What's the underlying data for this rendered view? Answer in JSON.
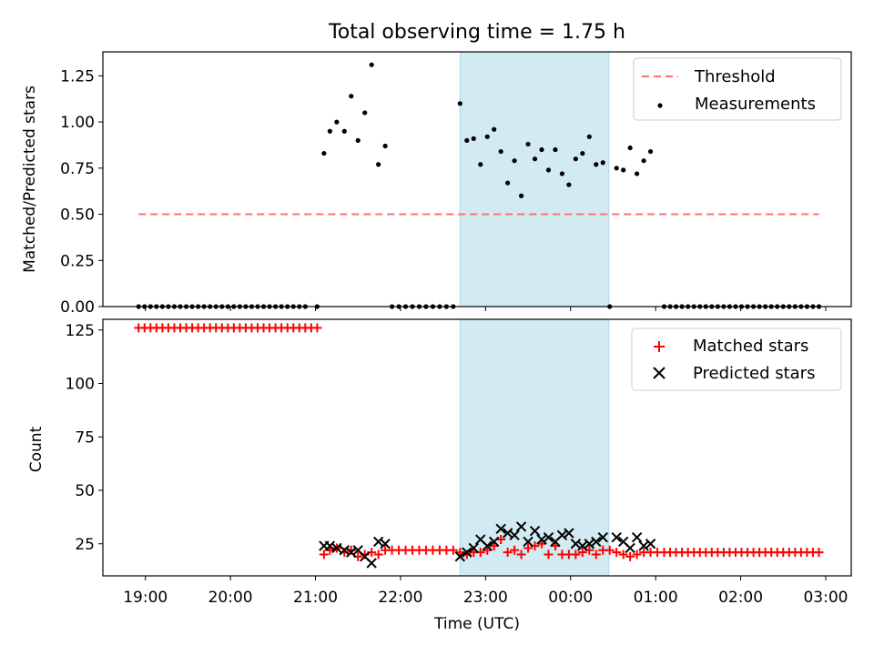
{
  "chart_data": [
    {
      "type": "scatter",
      "title": "Total observing time = 1.75 h",
      "xlabel": "",
      "ylabel": "Matched/Predicted stars",
      "ylim": [
        0,
        1.38
      ],
      "yticks": [
        0.0,
        0.25,
        0.5,
        0.75,
        1.0,
        1.25
      ],
      "ytick_labels": [
        "0.00",
        "0.25",
        "0.50",
        "0.75",
        "1.00",
        "1.25"
      ],
      "highlight_span": {
        "from": 22.7,
        "to": 24.45,
        "color": "#add8e6"
      },
      "legend": {
        "position": "top-right",
        "entries": [
          "Threshold",
          "Measurements"
        ]
      },
      "threshold": {
        "name": "Threshold",
        "value": 0.5,
        "x_from": 18.92,
        "x_to": 26.92,
        "color": "#ff7070"
      },
      "measurements": {
        "name": "Measurements",
        "color": "#000000",
        "points": [
          [
            18.92,
            0
          ],
          [
            18.99,
            0
          ],
          [
            19.06,
            0
          ],
          [
            19.13,
            0
          ],
          [
            19.2,
            0
          ],
          [
            19.27,
            0
          ],
          [
            19.34,
            0
          ],
          [
            19.41,
            0
          ],
          [
            19.48,
            0
          ],
          [
            19.55,
            0
          ],
          [
            19.62,
            0
          ],
          [
            19.69,
            0
          ],
          [
            19.76,
            0
          ],
          [
            19.83,
            0
          ],
          [
            19.9,
            0
          ],
          [
            19.97,
            0
          ],
          [
            20.04,
            0
          ],
          [
            20.11,
            0
          ],
          [
            20.18,
            0
          ],
          [
            20.25,
            0
          ],
          [
            20.32,
            0
          ],
          [
            20.39,
            0
          ],
          [
            20.46,
            0
          ],
          [
            20.53,
            0
          ],
          [
            20.6,
            0
          ],
          [
            20.67,
            0
          ],
          [
            20.74,
            0
          ],
          [
            20.81,
            0
          ],
          [
            20.88,
            0
          ],
          [
            21.02,
            0
          ],
          [
            21.1,
            0.83
          ],
          [
            21.17,
            0.95
          ],
          [
            21.25,
            1.0
          ],
          [
            21.34,
            0.95
          ],
          [
            21.42,
            1.14
          ],
          [
            21.5,
            0.9
          ],
          [
            21.58,
            1.05
          ],
          [
            21.66,
            1.31
          ],
          [
            21.74,
            0.77
          ],
          [
            21.82,
            0.87
          ],
          [
            21.9,
            0
          ],
          [
            21.98,
            0
          ],
          [
            22.06,
            0
          ],
          [
            22.14,
            0
          ],
          [
            22.22,
            0
          ],
          [
            22.3,
            0
          ],
          [
            22.38,
            0
          ],
          [
            22.46,
            0
          ],
          [
            22.54,
            0
          ],
          [
            22.62,
            0
          ],
          [
            22.7,
            1.1
          ],
          [
            22.78,
            0.9
          ],
          [
            22.86,
            0.91
          ],
          [
            22.94,
            0.77
          ],
          [
            23.02,
            0.92
          ],
          [
            23.1,
            0.96
          ],
          [
            23.18,
            0.84
          ],
          [
            23.26,
            0.67
          ],
          [
            23.34,
            0.79
          ],
          [
            23.42,
            0.6
          ],
          [
            23.5,
            0.88
          ],
          [
            23.58,
            0.8
          ],
          [
            23.66,
            0.85
          ],
          [
            23.74,
            0.74
          ],
          [
            23.82,
            0.85
          ],
          [
            23.9,
            0.72
          ],
          [
            23.98,
            0.66
          ],
          [
            24.06,
            0.8
          ],
          [
            24.14,
            0.83
          ],
          [
            24.22,
            0.92
          ],
          [
            24.3,
            0.77
          ],
          [
            24.38,
            0.78
          ],
          [
            24.46,
            0
          ],
          [
            24.54,
            0.75
          ],
          [
            24.62,
            0.74
          ],
          [
            24.7,
            0.86
          ],
          [
            24.78,
            0.72
          ],
          [
            24.86,
            0.79
          ],
          [
            24.94,
            0.84
          ],
          [
            25.1,
            0
          ],
          [
            25.17,
            0
          ],
          [
            25.24,
            0
          ],
          [
            25.31,
            0
          ],
          [
            25.38,
            0
          ],
          [
            25.45,
            0
          ],
          [
            25.52,
            0
          ],
          [
            25.59,
            0
          ],
          [
            25.66,
            0
          ],
          [
            25.73,
            0
          ],
          [
            25.8,
            0
          ],
          [
            25.87,
            0
          ],
          [
            25.94,
            0
          ],
          [
            26.01,
            0
          ],
          [
            26.08,
            0
          ],
          [
            26.15,
            0
          ],
          [
            26.22,
            0
          ],
          [
            26.29,
            0
          ],
          [
            26.36,
            0
          ],
          [
            26.43,
            0
          ],
          [
            26.5,
            0
          ],
          [
            26.57,
            0
          ],
          [
            26.64,
            0
          ],
          [
            26.71,
            0
          ],
          [
            26.78,
            0
          ],
          [
            26.85,
            0
          ],
          [
            26.92,
            0
          ]
        ]
      }
    },
    {
      "type": "scatter",
      "title": "",
      "xlabel": "Time (UTC)",
      "ylabel": "Count",
      "xlim": [
        18.5,
        27.3
      ],
      "ylim": [
        10,
        130
      ],
      "xticks": [
        19,
        20,
        21,
        22,
        23,
        24,
        25,
        26,
        27
      ],
      "xtick_labels": [
        "19:00",
        "20:00",
        "21:00",
        "22:00",
        "23:00",
        "00:00",
        "01:00",
        "02:00",
        "03:00"
      ],
      "yticks": [
        25,
        50,
        75,
        100,
        125
      ],
      "ytick_labels": [
        "25",
        "50",
        "75",
        "100",
        "125"
      ],
      "highlight_span": {
        "from": 22.7,
        "to": 24.45,
        "color": "#add8e6"
      },
      "legend": {
        "position": "top-right",
        "entries": [
          "Matched stars",
          "Predicted stars"
        ]
      },
      "series": [
        {
          "name": "Matched stars",
          "marker": "+",
          "color": "#ff0000",
          "points": [
            [
              18.92,
              126
            ],
            [
              18.99,
              126
            ],
            [
              19.06,
              126
            ],
            [
              19.13,
              126
            ],
            [
              19.2,
              126
            ],
            [
              19.27,
              126
            ],
            [
              19.34,
              126
            ],
            [
              19.41,
              126
            ],
            [
              19.48,
              126
            ],
            [
              19.55,
              126
            ],
            [
              19.62,
              126
            ],
            [
              19.69,
              126
            ],
            [
              19.76,
              126
            ],
            [
              19.83,
              126
            ],
            [
              19.9,
              126
            ],
            [
              19.97,
              126
            ],
            [
              20.04,
              126
            ],
            [
              20.11,
              126
            ],
            [
              20.18,
              126
            ],
            [
              20.25,
              126
            ],
            [
              20.32,
              126
            ],
            [
              20.39,
              126
            ],
            [
              20.46,
              126
            ],
            [
              20.53,
              126
            ],
            [
              20.6,
              126
            ],
            [
              20.67,
              126
            ],
            [
              20.74,
              126
            ],
            [
              20.81,
              126
            ],
            [
              20.88,
              126
            ],
            [
              20.95,
              126
            ],
            [
              21.02,
              126
            ],
            [
              21.1,
              20
            ],
            [
              21.17,
              22
            ],
            [
              21.25,
              23
            ],
            [
              21.34,
              21
            ],
            [
              21.42,
              22
            ],
            [
              21.5,
              19
            ],
            [
              21.58,
              20
            ],
            [
              21.66,
              21
            ],
            [
              21.74,
              20
            ],
            [
              21.82,
              22
            ],
            [
              21.9,
              22
            ],
            [
              21.98,
              22
            ],
            [
              22.06,
              22
            ],
            [
              22.14,
              22
            ],
            [
              22.22,
              22
            ],
            [
              22.3,
              22
            ],
            [
              22.38,
              22
            ],
            [
              22.46,
              22
            ],
            [
              22.54,
              22
            ],
            [
              22.62,
              22
            ],
            [
              22.7,
              21
            ],
            [
              22.78,
              20
            ],
            [
              22.86,
              21
            ],
            [
              22.94,
              21
            ],
            [
              23.02,
              22
            ],
            [
              23.1,
              24
            ],
            [
              23.18,
              27
            ],
            [
              23.26,
              21
            ],
            [
              23.34,
              22
            ],
            [
              23.42,
              20
            ],
            [
              23.5,
              23
            ],
            [
              23.58,
              24
            ],
            [
              23.66,
              25
            ],
            [
              23.74,
              20
            ],
            [
              23.82,
              24
            ],
            [
              23.9,
              20
            ],
            [
              23.98,
              20
            ],
            [
              24.06,
              20
            ],
            [
              24.14,
              21
            ],
            [
              24.22,
              22
            ],
            [
              24.3,
              20
            ],
            [
              24.38,
              22
            ],
            [
              24.46,
              22
            ],
            [
              24.54,
              21
            ],
            [
              24.62,
              20
            ],
            [
              24.7,
              19
            ],
            [
              24.78,
              20
            ],
            [
              24.86,
              21
            ],
            [
              24.94,
              21
            ],
            [
              25.02,
              21
            ],
            [
              25.1,
              21
            ],
            [
              25.17,
              21
            ],
            [
              25.24,
              21
            ],
            [
              25.31,
              21
            ],
            [
              25.38,
              21
            ],
            [
              25.45,
              21
            ],
            [
              25.52,
              21
            ],
            [
              25.59,
              21
            ],
            [
              25.66,
              21
            ],
            [
              25.73,
              21
            ],
            [
              25.8,
              21
            ],
            [
              25.87,
              21
            ],
            [
              25.94,
              21
            ],
            [
              26.01,
              21
            ],
            [
              26.08,
              21
            ],
            [
              26.15,
              21
            ],
            [
              26.22,
              21
            ],
            [
              26.29,
              21
            ],
            [
              26.36,
              21
            ],
            [
              26.43,
              21
            ],
            [
              26.5,
              21
            ],
            [
              26.57,
              21
            ],
            [
              26.64,
              21
            ],
            [
              26.71,
              21
            ],
            [
              26.78,
              21
            ],
            [
              26.85,
              21
            ],
            [
              26.92,
              21
            ]
          ]
        },
        {
          "name": "Predicted stars",
          "marker": "x",
          "color": "#000000",
          "points": [
            [
              21.1,
              24
            ],
            [
              21.17,
              24
            ],
            [
              21.25,
              23
            ],
            [
              21.34,
              22
            ],
            [
              21.42,
              21
            ],
            [
              21.5,
              22
            ],
            [
              21.58,
              19
            ],
            [
              21.66,
              16
            ],
            [
              21.74,
              26
            ],
            [
              21.82,
              25
            ],
            [
              22.7,
              19
            ],
            [
              22.78,
              21
            ],
            [
              22.86,
              23
            ],
            [
              22.94,
              27
            ],
            [
              23.02,
              24
            ],
            [
              23.1,
              26
            ],
            [
              23.18,
              32
            ],
            [
              23.26,
              30
            ],
            [
              23.34,
              29
            ],
            [
              23.42,
              33
            ],
            [
              23.5,
              26
            ],
            [
              23.58,
              31
            ],
            [
              23.66,
              27
            ],
            [
              23.74,
              28
            ],
            [
              23.82,
              26
            ],
            [
              23.9,
              29
            ],
            [
              23.98,
              30
            ],
            [
              24.06,
              25
            ],
            [
              24.14,
              24
            ],
            [
              24.22,
              25
            ],
            [
              24.3,
              26
            ],
            [
              24.38,
              28
            ],
            [
              24.54,
              28
            ],
            [
              24.62,
              26
            ],
            [
              24.7,
              23
            ],
            [
              24.78,
              28
            ],
            [
              24.86,
              24
            ],
            [
              24.94,
              25
            ]
          ]
        }
      ]
    }
  ]
}
